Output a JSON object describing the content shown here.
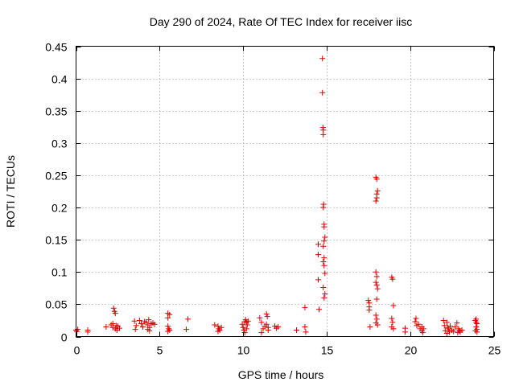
{
  "chart_data": {
    "type": "scatter",
    "title": "Day 290 of 2024, Rate Of TEC Index for receiver iisc",
    "xlabel": "GPS time / hours",
    "ylabel": "ROTI / TECUs",
    "xlim": [
      0,
      25
    ],
    "ylim": [
      0,
      0.45
    ],
    "x_ticks": [
      0,
      5,
      10,
      15,
      20,
      25
    ],
    "x_tick_labels": [
      "0",
      "5",
      "10",
      "15",
      "20",
      "25"
    ],
    "y_ticks": [
      0,
      0.05,
      0.1,
      0.15,
      0.2,
      0.25,
      0.3,
      0.35,
      0.4,
      0.45
    ],
    "y_tick_labels": [
      "0",
      "0.05",
      "0.1",
      "0.15",
      "0.2",
      "0.25",
      "0.3",
      "0.35",
      "0.4",
      "0.45"
    ],
    "grid": true,
    "marker": "+",
    "color": "#dd0000",
    "series": [
      {
        "name": "ROTI",
        "points": [
          [
            0.0,
            0.01
          ],
          [
            0.05,
            0.008
          ],
          [
            0.1,
            0.011
          ],
          [
            0.7,
            0.01
          ],
          [
            0.7,
            0.007
          ],
          [
            1.8,
            0.015
          ],
          [
            2.1,
            0.018
          ],
          [
            2.2,
            0.014
          ],
          [
            2.25,
            0.044
          ],
          [
            2.3,
            0.039
          ],
          [
            2.35,
            0.036
          ],
          [
            2.35,
            0.012
          ],
          [
            2.4,
            0.017
          ],
          [
            2.5,
            0.016
          ],
          [
            2.6,
            0.013
          ],
          [
            2.2,
            0.02
          ],
          [
            2.45,
            0.01
          ],
          [
            3.5,
            0.024
          ],
          [
            3.55,
            0.011
          ],
          [
            3.6,
            0.017
          ],
          [
            3.8,
            0.025
          ],
          [
            3.9,
            0.02
          ],
          [
            4.0,
            0.015
          ],
          [
            4.1,
            0.023
          ],
          [
            4.2,
            0.022
          ],
          [
            4.3,
            0.018
          ],
          [
            4.3,
            0.011
          ],
          [
            4.35,
            0.026
          ],
          [
            4.4,
            0.014
          ],
          [
            4.5,
            0.02
          ],
          [
            4.6,
            0.021
          ],
          [
            4.7,
            0.019
          ],
          [
            4.4,
            0.009
          ],
          [
            5.5,
            0.036
          ],
          [
            5.5,
            0.029
          ],
          [
            5.5,
            0.016
          ],
          [
            5.55,
            0.012
          ],
          [
            5.6,
            0.01
          ],
          [
            5.6,
            0.034
          ],
          [
            5.5,
            0.008
          ],
          [
            6.6,
            0.011
          ],
          [
            6.7,
            0.027
          ],
          [
            8.3,
            0.018
          ],
          [
            8.5,
            0.016
          ],
          [
            8.55,
            0.012
          ],
          [
            8.6,
            0.01
          ],
          [
            8.7,
            0.014
          ],
          [
            8.5,
            0.008
          ],
          [
            9.95,
            0.019
          ],
          [
            10.0,
            0.014
          ],
          [
            10.05,
            0.01
          ],
          [
            10.1,
            0.023
          ],
          [
            10.15,
            0.026
          ],
          [
            10.2,
            0.022
          ],
          [
            10.25,
            0.018
          ],
          [
            10.3,
            0.024
          ],
          [
            10.1,
            0.006
          ],
          [
            10.2,
            0.012
          ],
          [
            11.0,
            0.029
          ],
          [
            11.1,
            0.022
          ],
          [
            11.1,
            0.006
          ],
          [
            11.2,
            0.012
          ],
          [
            11.3,
            0.016
          ],
          [
            11.4,
            0.035
          ],
          [
            11.45,
            0.031
          ],
          [
            11.5,
            0.014
          ],
          [
            11.5,
            0.01
          ],
          [
            11.4,
            0.019
          ],
          [
            11.9,
            0.016
          ],
          [
            12.0,
            0.013
          ],
          [
            12.1,
            0.015
          ],
          [
            13.2,
            0.01
          ],
          [
            13.7,
            0.045
          ],
          [
            13.7,
            0.015
          ],
          [
            13.75,
            0.007
          ],
          [
            14.5,
            0.127
          ],
          [
            14.5,
            0.143
          ],
          [
            14.5,
            0.088
          ],
          [
            14.55,
            0.042
          ],
          [
            14.75,
            0.431
          ],
          [
            14.75,
            0.378
          ],
          [
            14.78,
            0.324
          ],
          [
            14.8,
            0.313
          ],
          [
            14.8,
            0.32
          ],
          [
            14.82,
            0.205
          ],
          [
            14.8,
            0.2
          ],
          [
            14.85,
            0.174
          ],
          [
            14.85,
            0.17
          ],
          [
            14.9,
            0.154
          ],
          [
            14.85,
            0.148
          ],
          [
            14.8,
            0.14
          ],
          [
            14.85,
            0.122
          ],
          [
            14.8,
            0.116
          ],
          [
            14.85,
            0.11
          ],
          [
            14.9,
            0.098
          ],
          [
            14.8,
            0.076
          ],
          [
            14.9,
            0.066
          ],
          [
            14.85,
            0.06
          ],
          [
            17.5,
            0.056
          ],
          [
            17.55,
            0.052
          ],
          [
            17.55,
            0.046
          ],
          [
            17.55,
            0.041
          ],
          [
            17.6,
            0.015
          ],
          [
            17.95,
            0.247
          ],
          [
            18.0,
            0.244
          ],
          [
            17.95,
            0.21
          ],
          [
            18.0,
            0.215
          ],
          [
            18.05,
            0.226
          ],
          [
            18.0,
            0.221
          ],
          [
            17.95,
            0.1
          ],
          [
            18.0,
            0.093
          ],
          [
            17.95,
            0.084
          ],
          [
            18.0,
            0.08
          ],
          [
            18.05,
            0.074
          ],
          [
            18.0,
            0.058
          ],
          [
            17.95,
            0.033
          ],
          [
            18.0,
            0.027
          ],
          [
            17.95,
            0.021
          ],
          [
            18.05,
            0.018
          ],
          [
            18.9,
            0.092
          ],
          [
            18.95,
            0.089
          ],
          [
            19.0,
            0.048
          ],
          [
            18.9,
            0.028
          ],
          [
            18.95,
            0.022
          ],
          [
            18.9,
            0.015
          ],
          [
            19.0,
            0.012
          ],
          [
            19.7,
            0.013
          ],
          [
            19.7,
            0.007
          ],
          [
            20.3,
            0.023
          ],
          [
            20.35,
            0.028
          ],
          [
            20.4,
            0.017
          ],
          [
            20.5,
            0.019
          ],
          [
            20.6,
            0.012
          ],
          [
            20.7,
            0.009
          ],
          [
            20.7,
            0.015
          ],
          [
            20.75,
            0.006
          ],
          [
            20.8,
            0.012
          ],
          [
            22.0,
            0.025
          ],
          [
            22.05,
            0.017
          ],
          [
            22.1,
            0.009
          ],
          [
            22.2,
            0.022
          ],
          [
            22.25,
            0.014
          ],
          [
            22.3,
            0.012
          ],
          [
            22.35,
            0.007
          ],
          [
            22.4,
            0.016
          ],
          [
            22.5,
            0.01
          ],
          [
            22.6,
            0.008
          ],
          [
            22.7,
            0.015
          ],
          [
            22.8,
            0.021
          ],
          [
            22.85,
            0.006
          ],
          [
            22.9,
            0.012
          ],
          [
            22.95,
            0.009
          ],
          [
            23.0,
            0.007
          ],
          [
            23.1,
            0.01
          ],
          [
            22.2,
            0.005
          ],
          [
            23.9,
            0.025
          ],
          [
            23.95,
            0.022
          ],
          [
            24.0,
            0.02
          ],
          [
            23.95,
            0.015
          ],
          [
            24.0,
            0.011
          ],
          [
            23.9,
            0.009
          ],
          [
            24.0,
            0.007
          ],
          [
            23.95,
            0.027
          ]
        ]
      }
    ]
  }
}
